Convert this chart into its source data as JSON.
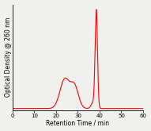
{
  "title": "",
  "xlabel": "Retention Time / min",
  "ylabel": "Optical Density @ 260 nm",
  "xlim": [
    0,
    60
  ],
  "line_color": "#ff0000",
  "line_width": 0.8,
  "background_color": "#f0f0ee",
  "x_ticks": [
    0,
    10,
    20,
    30,
    40,
    50,
    60
  ],
  "xlabel_fontsize": 5.5,
  "ylabel_fontsize": 5.5,
  "tick_fontsize": 5.0
}
